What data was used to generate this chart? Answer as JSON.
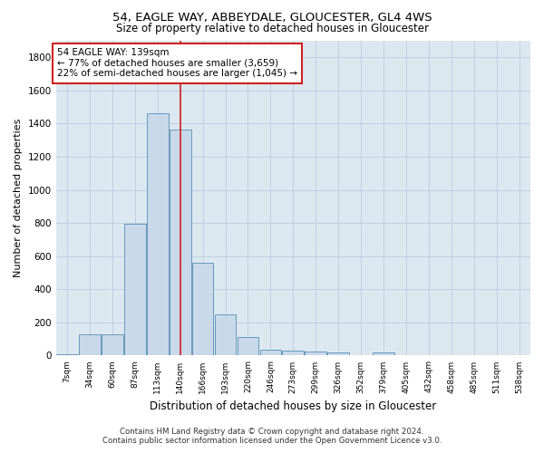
{
  "title_line1": "54, EAGLE WAY, ABBEYDALE, GLOUCESTER, GL4 4WS",
  "title_line2": "Size of property relative to detached houses in Gloucester",
  "xlabel": "Distribution of detached houses by size in Gloucester",
  "ylabel": "Number of detached properties",
  "categories": [
    "7sqm",
    "34sqm",
    "60sqm",
    "87sqm",
    "113sqm",
    "140sqm",
    "166sqm",
    "193sqm",
    "220sqm",
    "246sqm",
    "273sqm",
    "299sqm",
    "326sqm",
    "352sqm",
    "379sqm",
    "405sqm",
    "432sqm",
    "458sqm",
    "485sqm",
    "511sqm",
    "538sqm"
  ],
  "values": [
    10,
    130,
    130,
    795,
    1465,
    1365,
    560,
    250,
    110,
    35,
    30,
    25,
    20,
    0,
    20,
    0,
    0,
    0,
    0,
    0,
    0
  ],
  "bar_color": "#c9d9ea",
  "bar_edge_color": "#6699bb",
  "vline_index": 5,
  "vline_color": "#cc2222",
  "annotation_text": "54 EAGLE WAY: 139sqm\n← 77% of detached houses are smaller (3,659)\n22% of semi-detached houses are larger (1,045) →",
  "annotation_box_facecolor": "#ffffff",
  "annotation_box_edgecolor": "#cc2222",
  "ylim": [
    0,
    1900
  ],
  "yticks": [
    0,
    200,
    400,
    600,
    800,
    1000,
    1200,
    1400,
    1600,
    1800
  ],
  "grid_color": "#bbccdd",
  "bg_color": "#dce8f0",
  "footer_line1": "Contains HM Land Registry data © Crown copyright and database right 2024.",
  "footer_line2": "Contains public sector information licensed under the Open Government Licence v3.0."
}
